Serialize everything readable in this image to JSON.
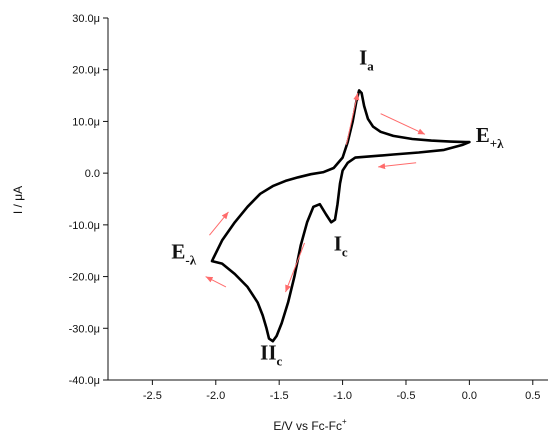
{
  "chart_data": {
    "type": "line",
    "title": "",
    "xlabel": "E/V vs Fc-Fc",
    "xlabel_superscript": "+",
    "ylabel": "I / μA",
    "xlim": [
      -2.85,
      0.62
    ],
    "ylim": [
      -4e-05,
      3e-05
    ],
    "x_ticks": [
      -2.5,
      -2.0,
      -1.5,
      -1.0,
      -0.5,
      0.0,
      0.5
    ],
    "x_tick_labels": [
      "-2.5",
      "-2.0",
      "-1.5",
      "-1.0",
      "-0.5",
      "0.0",
      "0.5"
    ],
    "y_ticks": [
      3e-05,
      2e-05,
      1e-05,
      0,
      -1e-05,
      -2e-05,
      -3e-05,
      -4e-05
    ],
    "y_tick_labels": [
      "30.0μ",
      "20.0μ",
      "10.0μ",
      "0.0",
      "-10.0μ",
      "-20.0μ",
      "-30.0μ",
      "-40.0μ"
    ],
    "grid": false,
    "line_color": "#000000",
    "arrow_color": "#ff6b6b",
    "series": [
      {
        "x": [
          -1.07,
          -1.0,
          -0.96,
          -0.92,
          -0.89,
          -0.87,
          -0.85,
          -0.83,
          -0.8,
          -0.76,
          -0.7,
          -0.6,
          -0.45,
          -0.3,
          -0.15,
          -0.03,
          0.0,
          -0.05,
          -0.2,
          -0.4,
          -0.6,
          -0.8,
          -0.9,
          -0.96,
          -1.0,
          -1.02,
          -1.04,
          -1.06,
          -1.09,
          -1.13,
          -1.18,
          -1.23,
          -1.28,
          -1.33,
          -1.38,
          -1.43,
          -1.48,
          -1.52,
          -1.55,
          -1.58,
          -1.6,
          -1.63,
          -1.67,
          -1.75,
          -1.85,
          -1.95,
          -2.03,
          -2.02,
          -1.95,
          -1.85,
          -1.75,
          -1.65,
          -1.55,
          -1.45,
          -1.35,
          -1.25,
          -1.15,
          -1.07
        ],
        "y": [
          1e-06,
          3e-06,
          6e-06,
          1e-05,
          1.4e-05,
          1.6e-05,
          1.55e-05,
          1.3e-05,
          1.05e-05,
          9e-06,
          8e-06,
          7.2e-06,
          6.6e-06,
          6.3e-06,
          6.1e-06,
          6e-06,
          6e-06,
          5.5e-06,
          4.5e-06,
          4e-06,
          3.6e-06,
          3.2e-06,
          3e-06,
          2e-06,
          5e-07,
          -2e-06,
          -6e-06,
          -9e-06,
          -9.5e-06,
          -8e-06,
          -6e-06,
          -6.5e-06,
          -9.5e-06,
          -1.4e-05,
          -2e-05,
          -2.5e-05,
          -2.9e-05,
          -3.15e-05,
          -3.25e-05,
          -3.2e-05,
          -3e-05,
          -2.75e-05,
          -2.5e-05,
          -2.2e-05,
          -1.95e-05,
          -1.75e-05,
          -1.7e-05,
          -1.65e-05,
          -1.3e-05,
          -9.5e-06,
          -6.5e-06,
          -4e-06,
          -2.5e-06,
          -1.5e-06,
          -8e-07,
          -2e-07,
          2e-07,
          1e-06
        ]
      }
    ],
    "annotations": [
      {
        "main": "I",
        "sub": "a",
        "x": -0.87,
        "y": 2.1e-05
      },
      {
        "main": "I",
        "sub": "c",
        "x": -1.07,
        "y": -1.5e-05
      },
      {
        "main": "II",
        "sub": "c",
        "x": -1.65,
        "y": -3.6e-05
      },
      {
        "main": "E",
        "sub": "-λ",
        "x": -2.35,
        "y": -1.65e-05
      },
      {
        "main": "E",
        "sub": "+λ",
        "x": 0.05,
        "y": 6e-06
      }
    ],
    "arrows": [
      {
        "from": [
          -0.97,
          5.5e-06
        ],
        "to": [
          -0.88,
          1.55e-05
        ]
      },
      {
        "from": [
          -0.7,
          1.15e-05
        ],
        "to": [
          -0.35,
          7.5e-06
        ]
      },
      {
        "from": [
          -0.42,
          2e-06
        ],
        "to": [
          -0.72,
          1.2e-06
        ]
      },
      {
        "from": [
          -1.3,
          -1.35e-05
        ],
        "to": [
          -1.45,
          -2.3e-05
        ]
      },
      {
        "from": [
          -1.92,
          -2.2e-05
        ],
        "to": [
          -2.08,
          -2e-05
        ]
      },
      {
        "from": [
          -2.05,
          -1.2e-05
        ],
        "to": [
          -1.9,
          -7.5e-06
        ]
      }
    ]
  }
}
